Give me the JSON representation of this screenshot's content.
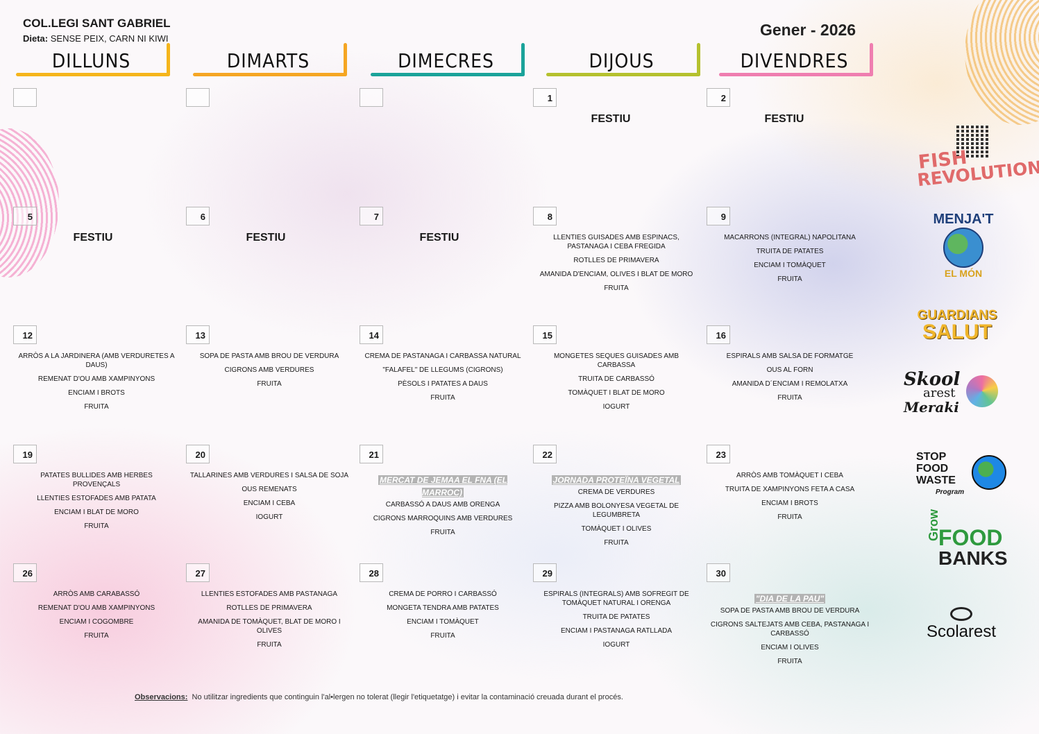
{
  "header": {
    "school": "COL.LEGI SANT GABRIEL",
    "diet_label": "Dieta:",
    "diet_value": "SENSE PEIX, CARN NI KIWI",
    "month": "Gener - 2026"
  },
  "weekdays": [
    {
      "label": "DILLUNS",
      "color": "#f5b51b"
    },
    {
      "label": "DIMARTS",
      "color": "#f5a623"
    },
    {
      "label": "DIMECRES",
      "color": "#1aa39a"
    },
    {
      "label": "DIJOUS",
      "color": "#b5c12e"
    },
    {
      "label": "DIVENDRES",
      "color": "#ef7eb0"
    }
  ],
  "weeks": [
    [
      {
        "day": "",
        "festiu": "",
        "special": "",
        "dishes": []
      },
      {
        "day": "",
        "festiu": "",
        "special": "",
        "dishes": []
      },
      {
        "day": "",
        "festiu": "",
        "special": "",
        "dishes": []
      },
      {
        "day": "1",
        "festiu": "FESTIU",
        "special": "",
        "dishes": []
      },
      {
        "day": "2",
        "festiu": "FESTIU",
        "special": "",
        "dishes": []
      }
    ],
    [
      {
        "day": "5",
        "festiu": "FESTIU",
        "special": "",
        "dishes": []
      },
      {
        "day": "6",
        "festiu": "FESTIU",
        "special": "",
        "dishes": []
      },
      {
        "day": "7",
        "festiu": "FESTIU",
        "special": "",
        "dishes": []
      },
      {
        "day": "8",
        "festiu": "",
        "special": "",
        "dishes": [
          "LLENTIES GUISADES AMB ESPINACS, PASTANAGA I CEBA FREGIDA",
          "ROTLLES DE PRIMAVERA",
          "AMANIDA D'ENCIAM, OLIVES I BLAT DE MORO",
          "FRUITA"
        ]
      },
      {
        "day": "9",
        "festiu": "",
        "special": "",
        "dishes": [
          "MACARRONS (INTEGRAL) NAPOLITANA",
          "TRUITA DE PATATES",
          "ENCIAM I TOMÀQUET",
          "FRUITA"
        ]
      }
    ],
    [
      {
        "day": "12",
        "festiu": "",
        "special": "",
        "dishes": [
          "ARRÒS A LA JARDINERA (AMB VERDURETES A DAUS)",
          "REMENAT D'OU AMB XAMPINYONS",
          "ENCIAM I BROTS",
          "FRUITA"
        ]
      },
      {
        "day": "13",
        "festiu": "",
        "special": "",
        "dishes": [
          "SOPA DE PASTA AMB BROU DE VERDURA",
          "CIGRONS AMB VERDURES",
          "FRUITA"
        ]
      },
      {
        "day": "14",
        "festiu": "",
        "special": "",
        "dishes": [
          "CREMA DE PASTANAGA I CARBASSA NATURAL",
          "\"FALAFEL\" DE LLEGUMS (CIGRONS)",
          "PÈSOLS I PATATES A DAUS",
          "FRUITA"
        ]
      },
      {
        "day": "15",
        "festiu": "",
        "special": "",
        "dishes": [
          "MONGETES SEQUES GUISADES AMB CARBASSA",
          "TRUITA DE CARBASSÓ",
          "TOMÀQUET I BLAT DE MORO",
          "IOGURT"
        ]
      },
      {
        "day": "16",
        "festiu": "",
        "special": "",
        "dishes": [
          "ESPIRALS AMB SALSA DE FORMATGE",
          "OUS AL FORN",
          "AMANIDA D´ENCIAM I REMOLATXA",
          "FRUITA"
        ]
      }
    ],
    [
      {
        "day": "19",
        "festiu": "",
        "special": "",
        "dishes": [
          "PATATES BULLIDES AMB HERBES PROVENÇALS",
          "LLENTIES ESTOFADES AMB PATATA",
          "ENCIAM I BLAT DE MORO",
          "FRUITA"
        ]
      },
      {
        "day": "20",
        "festiu": "",
        "special": "",
        "dishes": [
          "TALLARINES AMB VERDURES I SALSA DE SOJA",
          "OUS REMENATS",
          "ENCIAM I CEBA",
          "IOGURT"
        ]
      },
      {
        "day": "21",
        "festiu": "",
        "special": "MERCAT DE JEMAA EL FNA (EL MARROC)",
        "dishes": [
          "CARBASSÓ A DAUS AMB ORENGA",
          "CIGRONS MARROQUINS AMB VERDURES",
          "FRUITA"
        ]
      },
      {
        "day": "22",
        "festiu": "",
        "special": "JORNADA PROTEÏNA VEGETAL",
        "dishes": [
          "CREMA DE VERDURES",
          "PIZZA AMB BOLONYESA VEGETAL DE LEGUMBRETA",
          "TOMÀQUET I OLIVES",
          "FRUITA"
        ]
      },
      {
        "day": "23",
        "festiu": "",
        "special": "",
        "dishes": [
          "ARRÒS AMB TOMÀQUET I CEBA",
          "TRUITA DE XAMPINYONS FETA A CASA",
          "ENCIAM I BROTS",
          "FRUITA"
        ]
      }
    ],
    [
      {
        "day": "26",
        "festiu": "",
        "special": "",
        "dishes": [
          "ARRÒS AMB CARABASSÓ",
          "REMENAT D'OU AMB XAMPINYONS",
          "ENCIAM I COGOMBRE",
          "FRUITA"
        ]
      },
      {
        "day": "27",
        "festiu": "",
        "special": "",
        "dishes": [
          "LLENTIES ESTOFADES AMB PASTANAGA",
          "ROTLLES DE PRIMAVERA",
          "AMANIDA DE TOMÀQUET, BLAT DE MORO I OLIVES",
          "FRUITA"
        ]
      },
      {
        "day": "28",
        "festiu": "",
        "special": "",
        "dishes": [
          "CREMA DE PORRO I CARBASSÓ",
          "MONGETA TENDRA AMB PATATES",
          "ENCIAM I TOMÀQUET",
          "FRUITA"
        ]
      },
      {
        "day": "29",
        "festiu": "",
        "special": "",
        "dishes": [
          "ESPIRALS (INTEGRALS) AMB SOFREGIT DE TOMÀQUET NATURAL I ORENGA",
          "TRUITA DE PATATES",
          "ENCIAM I PASTANAGA RATLLADA",
          "IOGURT"
        ]
      },
      {
        "day": "30",
        "festiu": "",
        "special": "\"DIA DE LA PAU\"",
        "dishes": [
          "SOPA DE PASTA AMB BROU DE VERDURA",
          "CIGRONS SALTEJATS AMB CEBA, PASTANAGA I CARBASSÓ",
          "ENCIAM I OLIVES",
          "FRUITA"
        ]
      }
    ]
  ],
  "logos": {
    "qr_icon": "qr-code-icon",
    "fish_1": "FISH",
    "fish_2": "REVOLUTION",
    "menja_1": "MENJA'T",
    "menja_2": "EL MÓN",
    "guardians_1": "GUARDIANS",
    "guardians_2": "SALUT",
    "skool_1": "Skool",
    "skool_2": "arest",
    "skool_3": "Meraki",
    "stop_1": "STOP",
    "stop_2": "FOOD",
    "stop_3": "WASTE",
    "stop_4": "Program",
    "grow_1": "Grow",
    "grow_2": "FOOD",
    "grow_3": "BANKS",
    "scolarest": "Scolarest"
  },
  "footer": {
    "label": "Observacions:",
    "text": "No utilitzar ingredients que continguin l'al•lergen no tolerat (llegir l'etiquetatge) i evitar la contaminació creuada durant el procés."
  }
}
